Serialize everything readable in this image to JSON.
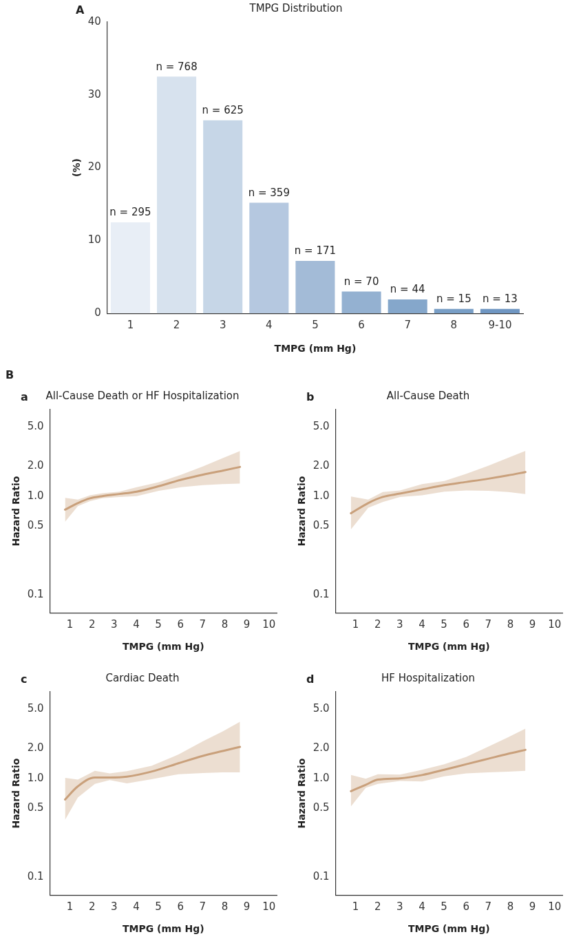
{
  "chart_data": [
    {
      "type": "bar",
      "title": "TMPG Distribution",
      "xlabel": "TMPG (mm Hg)",
      "ylabel": "(%)",
      "annotations": [
        "A",
        {
          "text": "n = 295",
          "x": "1",
          "y": 12.5
        },
        {
          "text": "n = 768",
          "x": "2",
          "y": 32.5
        },
        {
          "text": "n = 625",
          "x": "3",
          "y": 26.5
        },
        {
          "text": "n = 359",
          "x": "4",
          "y": 15.2
        },
        {
          "text": "n = 171",
          "x": "5",
          "y": 7.2
        },
        {
          "text": "n = 70",
          "x": "6",
          "y": 3.0
        },
        {
          "text": "n = 44",
          "x": "7",
          "y": 1.9
        },
        {
          "text": "n = 15",
          "x": "8",
          "y": 0.6
        },
        {
          "text": "n = 13",
          "x": "9-10",
          "y": 0.6
        }
      ],
      "categories": [
        "1",
        "2",
        "3",
        "4",
        "5",
        "6",
        "7",
        "8",
        "9-10"
      ],
      "values": [
        12.5,
        32.5,
        26.5,
        15.2,
        7.2,
        3.0,
        1.9,
        0.6,
        0.6
      ],
      "colors": [
        "#e8eef6",
        "#d7e2ee",
        "#c6d6e7",
        "#b5c8e0",
        "#a3bbd7",
        "#94b1d1",
        "#85a7cb",
        "#789ec6",
        "#6f96c2"
      ],
      "ylim": [
        0,
        40
      ],
      "yticks": [
        0,
        10,
        20,
        30,
        40
      ],
      "grid": false
    },
    {
      "type": "line",
      "title": "All-Cause Death or HF Hospitalization",
      "xlabel": "TMPG (mm Hg)",
      "ylabel": "Hazard Ratio",
      "annotations": [
        "B",
        "a"
      ],
      "x": [
        0.78,
        1.36,
        1.91,
        2.47,
        3.24,
        4.02,
        5.02,
        6.02,
        7.02,
        7.91,
        8.69
      ],
      "series": [
        {
          "color": "#c9a07c",
          "values": [
            0.73,
            0.85,
            0.95,
            1.0,
            1.05,
            1.11,
            1.26,
            1.46,
            1.65,
            1.81,
            1.97
          ],
          "lower": [
            0.55,
            0.79,
            0.89,
            0.95,
            0.98,
            1.0,
            1.13,
            1.23,
            1.29,
            1.32,
            1.34
          ],
          "upper": [
            0.96,
            0.92,
            1.02,
            1.07,
            1.11,
            1.23,
            1.38,
            1.64,
            2.0,
            2.42,
            2.85
          ]
        }
      ],
      "xlim": [
        0.1,
        10.35
      ],
      "xticks": [
        1,
        2,
        3,
        4,
        5,
        6,
        7,
        8,
        9,
        10
      ],
      "ylim": [
        0.066,
        7.5
      ],
      "yticks": [
        0.1,
        0.5,
        {
          "value": 1,
          "label": "1.0"
        },
        {
          "value": 2,
          "label": "2.0"
        },
        {
          "value": 5,
          "label": "5.0"
        }
      ],
      "log": "y",
      "grid": false,
      "marker": "none",
      "line_style": "solid"
    },
    {
      "type": "line",
      "title": "All-Cause Death",
      "xlabel": "TMPG (mm Hg)",
      "ylabel": "Hazard Ratio",
      "annotations": [
        "b"
      ],
      "x": [
        0.79,
        1.57,
        2.23,
        3.01,
        4.01,
        5.01,
        6.01,
        7.01,
        7.9,
        8.68
      ],
      "series": [
        {
          "color": "#c9a07c",
          "values": [
            0.67,
            0.85,
            0.98,
            1.06,
            1.17,
            1.29,
            1.39,
            1.5,
            1.62,
            1.75
          ],
          "lower": [
            0.46,
            0.76,
            0.87,
            0.98,
            1.02,
            1.11,
            1.14,
            1.13,
            1.1,
            1.05
          ],
          "upper": [
            0.99,
            0.92,
            1.1,
            1.14,
            1.32,
            1.42,
            1.68,
            2.03,
            2.44,
            2.87
          ]
        }
      ],
      "xlim": [
        0.1,
        10.35
      ],
      "xticks": [
        1,
        2,
        3,
        4,
        5,
        6,
        7,
        8,
        9,
        10
      ],
      "ylim": [
        0.066,
        7.5
      ],
      "yticks": [
        0.1,
        0.5,
        {
          "value": 1,
          "label": "1.0"
        },
        {
          "value": 2,
          "label": "2.0"
        },
        {
          "value": 5,
          "label": "5.0"
        }
      ],
      "log": "y",
      "grid": false,
      "marker": "none",
      "line_style": "solid"
    },
    {
      "type": "line",
      "title": "Cardiac Death",
      "xlabel": "TMPG (mm Hg)",
      "ylabel": "Hazard Ratio",
      "annotations": [
        "c"
      ],
      "x": [
        0.78,
        1.36,
        2.13,
        2.8,
        3.58,
        4.69,
        5.91,
        7.02,
        7.91,
        8.69
      ],
      "series": [
        {
          "color": "#c9a07c",
          "values": [
            0.61,
            0.83,
            1.02,
            1.02,
            1.04,
            1.17,
            1.42,
            1.69,
            1.89,
            2.08
          ],
          "lower": [
            0.38,
            0.64,
            0.88,
            0.96,
            0.89,
            0.98,
            1.1,
            1.13,
            1.15,
            1.15
          ],
          "upper": [
            1.01,
            0.97,
            1.19,
            1.12,
            1.18,
            1.34,
            1.74,
            2.37,
            2.98,
            3.74
          ]
        }
      ],
      "xlim": [
        0.1,
        10.35
      ],
      "xticks": [
        1,
        2,
        3,
        4,
        5,
        6,
        7,
        8,
        9,
        10
      ],
      "ylim": [
        0.066,
        7.5
      ],
      "yticks": [
        0.1,
        0.5,
        {
          "value": 1,
          "label": "1.0"
        },
        {
          "value": 2,
          "label": "2.0"
        },
        {
          "value": 5,
          "label": "5.0"
        }
      ],
      "log": "y",
      "grid": false,
      "marker": "none",
      "line_style": "solid"
    },
    {
      "type": "line",
      "title": "HF Hospitalization",
      "xlabel": "TMPG (mm Hg)",
      "ylabel": "Hazard Ratio",
      "annotations": [
        "d"
      ],
      "x": [
        0.79,
        1.46,
        2.01,
        3.01,
        4.01,
        5.01,
        6.01,
        7.01,
        7.9,
        8.68
      ],
      "series": [
        {
          "color": "#c9a07c",
          "values": [
            0.74,
            0.86,
            0.97,
            1.0,
            1.08,
            1.22,
            1.39,
            1.58,
            1.77,
            1.94
          ],
          "lower": [
            0.52,
            0.8,
            0.88,
            0.94,
            0.93,
            1.05,
            1.12,
            1.15,
            1.17,
            1.19
          ],
          "upper": [
            1.08,
            0.99,
            1.1,
            1.09,
            1.22,
            1.39,
            1.65,
            2.1,
            2.6,
            3.18
          ]
        }
      ],
      "xlim": [
        0.1,
        10.35
      ],
      "xticks": [
        1,
        2,
        3,
        4,
        5,
        6,
        7,
        8,
        9,
        10
      ],
      "ylim": [
        0.066,
        7.5
      ],
      "yticks": [
        0.1,
        0.5,
        {
          "value": 1,
          "label": "1.0"
        },
        {
          "value": 2,
          "label": "2.0"
        },
        {
          "value": 5,
          "label": "5.0"
        }
      ],
      "log": "y",
      "grid": false,
      "marker": "none",
      "line_style": "solid"
    }
  ]
}
